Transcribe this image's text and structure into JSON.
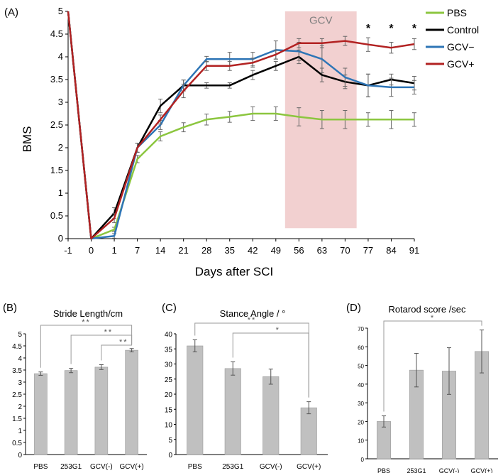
{
  "colors": {
    "pbs": "#8cc63f",
    "control": "#000000",
    "gcv_minus": "#2e75b6",
    "gcv_plus": "#b22222",
    "bar_fill": "#c0c0c0",
    "gcv_shade": "#f2d0d0"
  },
  "chart_data": [
    {
      "type": "line",
      "panel_label": "(A)",
      "xlabel": "Days after SCI",
      "ylabel": "BMS",
      "x_ticks": [
        "-1",
        "0",
        "1",
        "7",
        "14",
        "21",
        "28",
        "35",
        "42",
        "49",
        "56",
        "63",
        "70",
        "77",
        "84",
        "91"
      ],
      "y_ticks": [
        "0",
        "0.5",
        "1",
        "1.5",
        "2",
        "2.5",
        "3",
        "3.5",
        "4",
        "4.5",
        "5"
      ],
      "ylim": [
        0,
        5
      ],
      "shaded_region": {
        "label": "GCV",
        "from_tick": 9.4,
        "to_tick": 12.5
      },
      "significance": {
        "ticks": [
          13,
          14,
          15
        ],
        "labels": [
          "*",
          "*",
          "*"
        ]
      },
      "legend": [
        "PBS",
        "Control",
        "GCV−",
        "GCV+"
      ],
      "series": [
        {
          "name": "PBS",
          "key": "pbs",
          "values": [
            5,
            0,
            0.2,
            1.75,
            2.25,
            2.45,
            2.62,
            2.68,
            2.75,
            2.75,
            2.68,
            2.62,
            2.62,
            2.62,
            2.62,
            2.62
          ],
          "errors": [
            0,
            0,
            0.05,
            0.08,
            0.1,
            0.1,
            0.12,
            0.12,
            0.15,
            0.15,
            0.2,
            0.2,
            0.2,
            0.15,
            0.2,
            0.15
          ]
        },
        {
          "name": "Control",
          "key": "control",
          "values": [
            5,
            0,
            0.56,
            2.0,
            2.92,
            3.37,
            3.37,
            3.37,
            3.6,
            3.8,
            4.0,
            3.6,
            3.45,
            3.37,
            3.5,
            3.42
          ],
          "errors": [
            0,
            0,
            0.12,
            0.1,
            0.15,
            0.12,
            0.06,
            0.06,
            0.1,
            0.1,
            0.15,
            0.15,
            0.15,
            0.25,
            0.12,
            0.15
          ]
        },
        {
          "name": "GCV−",
          "key": "gcv_minus",
          "values": [
            5,
            0,
            0.06,
            2.0,
            2.5,
            3.37,
            3.95,
            3.95,
            3.95,
            4.15,
            4.12,
            3.95,
            3.55,
            3.37,
            3.33,
            3.33
          ],
          "errors": [
            0,
            0,
            0.05,
            0.1,
            0.1,
            0.12,
            0.06,
            0.15,
            0.15,
            0.2,
            0.2,
            0.3,
            0.2,
            0.25,
            0.2,
            0.15
          ]
        },
        {
          "name": "GCV+",
          "key": "gcv_plus",
          "values": [
            5,
            0,
            0.45,
            2.0,
            2.62,
            3.25,
            3.8,
            3.8,
            3.87,
            4.05,
            4.3,
            4.3,
            4.35,
            4.27,
            4.2,
            4.28
          ],
          "errors": [
            0,
            0,
            0.1,
            0.1,
            0.1,
            0.15,
            0.1,
            0.1,
            0.1,
            0.1,
            0.1,
            0.1,
            0.1,
            0.15,
            0.12,
            0.12
          ]
        }
      ]
    },
    {
      "type": "bar",
      "panel_label": "(B)",
      "title": "Stride Length/cm",
      "categories": [
        "PBS",
        "253G1",
        "GCV(-)",
        "GCV(+)"
      ],
      "values": [
        3.35,
        3.48,
        3.62,
        4.32
      ],
      "errors": [
        0.07,
        0.09,
        0.1,
        0.07
      ],
      "y_ticks": [
        "0",
        "0.5",
        "1",
        "1.5",
        "2",
        "2.5",
        "3",
        "3.5",
        "4",
        "4.5",
        "5"
      ],
      "ylim": [
        0,
        5
      ],
      "significance": [
        {
          "from": 0,
          "to": 3,
          "label": "**"
        },
        {
          "from": 1,
          "to": 3,
          "label": "**"
        },
        {
          "from": 2,
          "to": 3,
          "label": "**"
        }
      ]
    },
    {
      "type": "bar",
      "panel_label": "(C)",
      "title": "Stance Angle / °",
      "categories": [
        "PBS",
        "253G1",
        "GCV(-)",
        "GCV(+)"
      ],
      "values": [
        36,
        28.5,
        25.8,
        15.5
      ],
      "errors": [
        2.0,
        2.2,
        2.5,
        2.0
      ],
      "y_ticks": [
        "0",
        "5",
        "10",
        "15",
        "20",
        "25",
        "30",
        "35",
        "40"
      ],
      "ylim": [
        0,
        40
      ],
      "significance": [
        {
          "from": 0,
          "to": 3,
          "label": "**"
        },
        {
          "from": 1,
          "to": 3,
          "label": "*"
        }
      ]
    },
    {
      "type": "bar",
      "panel_label": "(D)",
      "title": "Rotarod score /sec",
      "categories": [
        "PBS",
        "253G1",
        "GCV(-)",
        "GCV(+)"
      ],
      "values": [
        20,
        47.5,
        47,
        57.5
      ],
      "errors": [
        3,
        9,
        12.5,
        11.5
      ],
      "y_ticks": [
        "0",
        "10",
        "20",
        "30",
        "40",
        "50",
        "60",
        "70"
      ],
      "ylim": [
        0,
        70
      ],
      "significance": [
        {
          "from": 0,
          "to": 3,
          "label": "*"
        }
      ]
    }
  ]
}
